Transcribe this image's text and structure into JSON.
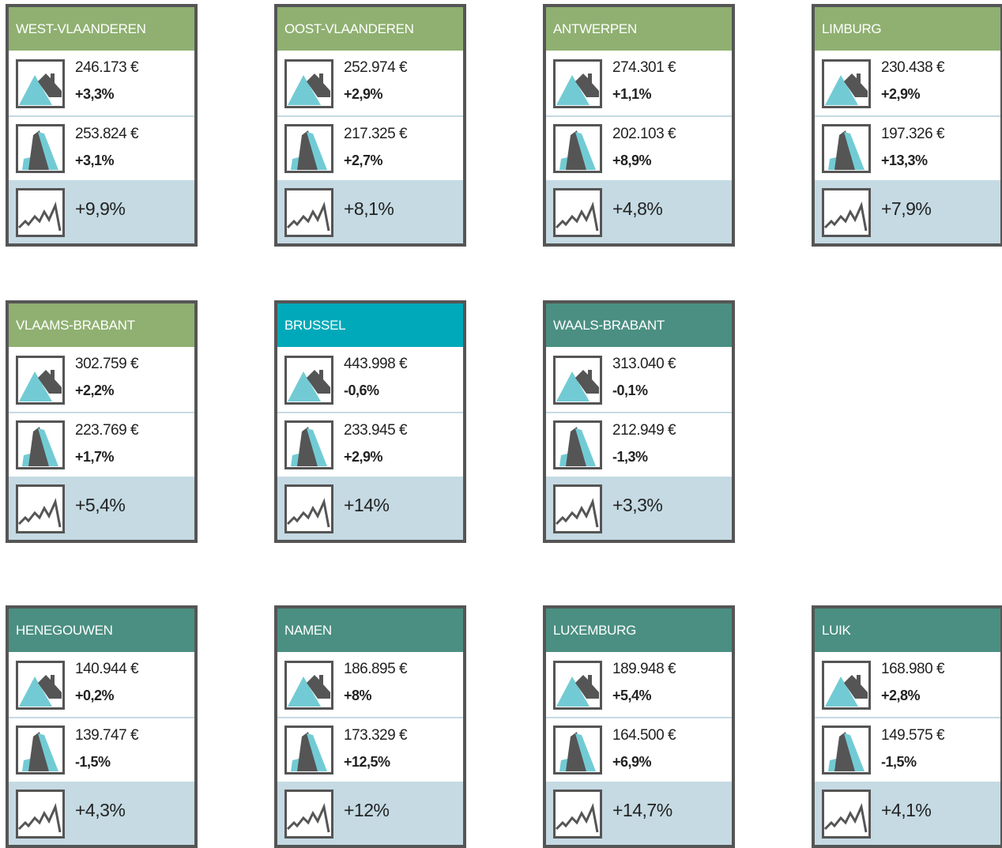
{
  "cards": [
    {
      "region": "WEST-VLAANDEREN",
      "color": "#8fb071",
      "house_price": "246.173 €",
      "house_change": "+3,3%",
      "apartment_price": "253.824 €",
      "apartment_change": "+3,1%",
      "trend": "+9,9%"
    },
    {
      "region": "OOST-VLAANDEREN",
      "color": "#8fb071",
      "house_price": "252.974 €",
      "house_change": "+2,9%",
      "apartment_price": "217.325 €",
      "apartment_change": "+2,7%",
      "trend": "+8,1%"
    },
    {
      "region": "ANTWERPEN",
      "color": "#8fb071",
      "house_price": "274.301 €",
      "house_change": "+1,1%",
      "apartment_price": "202.103 €",
      "apartment_change": "+8,9%",
      "trend": "+4,8%"
    },
    {
      "region": "LIMBURG",
      "color": "#8fb071",
      "house_price": "230.438 €",
      "house_change": "+2,9%",
      "apartment_price": "197.326 €",
      "apartment_change": "+13,3%",
      "trend": "+7,9%"
    },
    {
      "region": "VLAAMS-BRABANT",
      "color": "#8fb071",
      "house_price": "302.759 €",
      "house_change": "+2,2%",
      "apartment_price": "223.769 €",
      "apartment_change": "+1,7%",
      "trend": "+5,4%"
    },
    {
      "region": "BRUSSEL",
      "color": "#00a9b9",
      "house_price": "443.998 €",
      "house_change": "-0,6%",
      "apartment_price": "233.945 €",
      "apartment_change": "+2,9%",
      "trend": "+14%"
    },
    {
      "region": "WAALS-BRABANT",
      "color": "#4a8f82",
      "house_price": "313.040 €",
      "house_change": "-0,1%",
      "apartment_price": "212.949 €",
      "apartment_change": "-1,3%",
      "trend": "+3,3%"
    },
    {
      "region": "HENEGOUWEN",
      "color": "#4a8f82",
      "house_price": "140.944 €",
      "house_change": "+0,2%",
      "apartment_price": "139.747 €",
      "apartment_change": "-1,5%",
      "trend": "+4,3%"
    },
    {
      "region": "NAMEN",
      "color": "#4a8f82",
      "house_price": "186.895 €",
      "house_change": "+8%",
      "apartment_price": "173.329 €",
      "apartment_change": "+12,5%",
      "trend": "+12%"
    },
    {
      "region": "LUXEMBURG",
      "color": "#4a8f82",
      "house_price": "189.948 €",
      "house_change": "+5,4%",
      "apartment_price": "164.500 €",
      "apartment_change": "+6,9%",
      "trend": "+14,7%"
    },
    {
      "region": "LUIK",
      "color": "#4a8f82",
      "house_price": "168.980 €",
      "house_change": "+2,8%",
      "apartment_price": "149.575 €",
      "apartment_change": "-1,5%",
      "trend": "+4,1%"
    }
  ]
}
